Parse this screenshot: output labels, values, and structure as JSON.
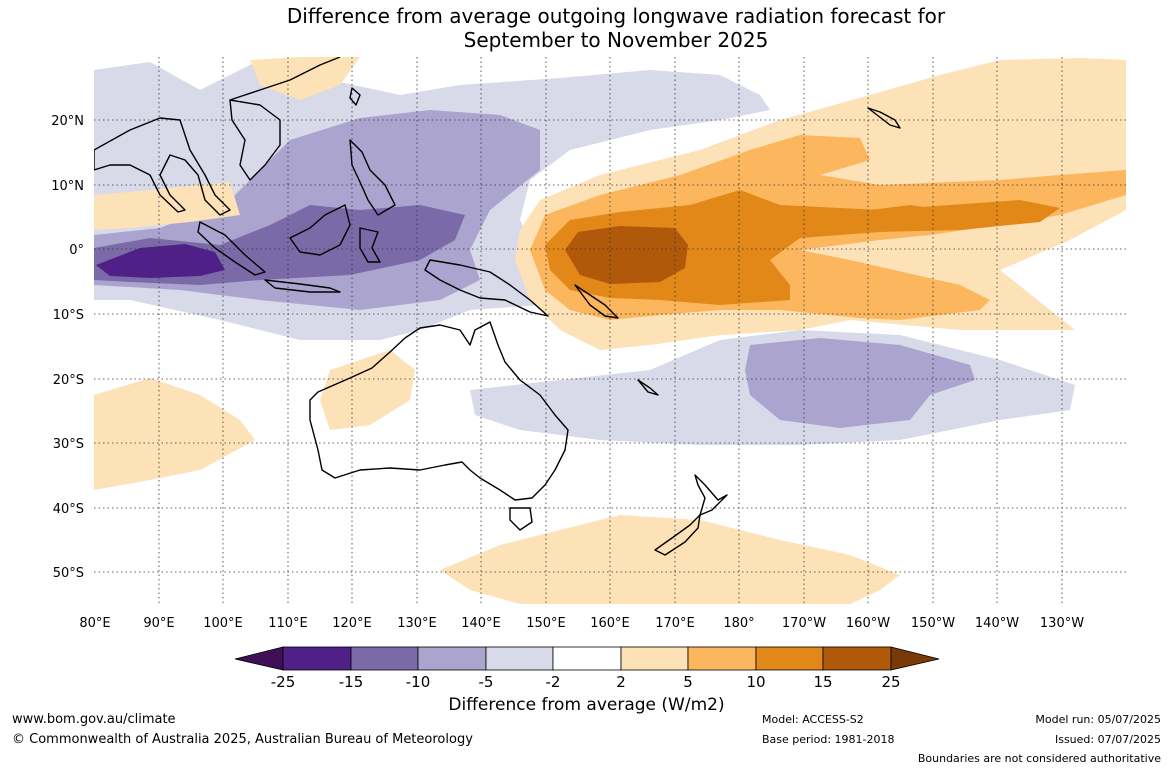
{
  "title": {
    "line1": "Difference from average outgoing longwave radiation forecast for",
    "line2": "September to November 2025"
  },
  "map": {
    "lat_labels": [
      "20°N",
      "10°N",
      "0°",
      "10°S",
      "20°S",
      "30°S",
      "40°S",
      "50°S"
    ],
    "lon_labels": [
      "80°E",
      "90°E",
      "100°E",
      "110°E",
      "120°E",
      "130°E",
      "140°E",
      "150°E",
      "160°E",
      "170°E",
      "180°",
      "170°W",
      "160°W",
      "150°W",
      "140°W",
      "130°W"
    ],
    "colors": {
      "neg25": "#3f0f57",
      "neg15": "#4f2088",
      "neg10": "#7b6aa8",
      "neg5": "#aba4cf",
      "neg2": "#d8d9e9",
      "neutral": "#ffffff",
      "pos2": "#fde1b7",
      "pos5": "#fbb65e",
      "pos10": "#e28818",
      "pos15": "#b1590b",
      "pos25": "#7a3a08"
    }
  },
  "colorbar": {
    "tick_labels": [
      "-25",
      "-15",
      "-10",
      "-5",
      "-2",
      "2",
      "5",
      "10",
      "15",
      "25"
    ],
    "title": "Difference from average (W/m2)"
  },
  "footer": {
    "website": "www.bom.gov.au/climate",
    "copyright": "© Commonwealth of Australia 2025, Australian Bureau of Meteorology",
    "model": "Model: ACCESS-S2",
    "base_period": "Base period: 1981-2018",
    "model_run": "Model run: 05/07/2025",
    "issued": "Issued: 07/07/2025",
    "disclaimer": "Boundaries are not considered authoritative"
  }
}
